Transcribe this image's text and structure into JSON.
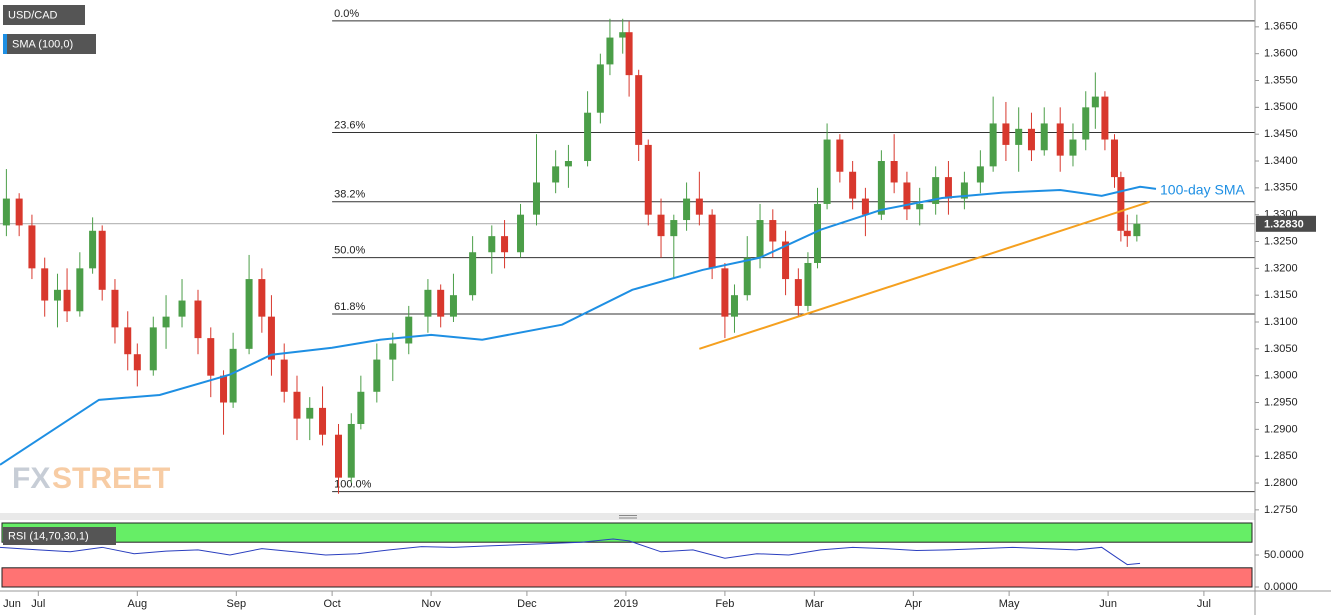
{
  "chart_data": {
    "type": "candlestick",
    "symbol": "USD/CAD",
    "indicator": "SMA (100,0)",
    "watermark": {
      "first": "FX",
      "second": "STREET"
    },
    "xlim": [
      -12,
      381
    ],
    "xticks": [
      {
        "value": -30,
        "label": "Jun"
      },
      {
        "value": 0,
        "label": "Jul"
      },
      {
        "value": 31,
        "label": "Aug"
      },
      {
        "value": 62,
        "label": "Sep"
      },
      {
        "value": 92,
        "label": "Oct"
      },
      {
        "value": 123,
        "label": "Nov"
      },
      {
        "value": 153,
        "label": "Dec"
      },
      {
        "value": 184,
        "label": "2019"
      },
      {
        "value": 215,
        "label": "Feb"
      },
      {
        "value": 243,
        "label": "Mar"
      },
      {
        "value": 274,
        "label": "Apr"
      },
      {
        "value": 304,
        "label": "May"
      },
      {
        "value": 335,
        "label": "Jun"
      },
      {
        "value": 365,
        "label": "Jul"
      }
    ],
    "ylim": [
      1.2746,
      1.37
    ],
    "yticks": [
      {
        "value": 1.275,
        "label": "1.2750"
      },
      {
        "value": 1.28,
        "label": "1.2800"
      },
      {
        "value": 1.285,
        "label": "1.2850"
      },
      {
        "value": 1.29,
        "label": "1.2900"
      },
      {
        "value": 1.295,
        "label": "1.2950"
      },
      {
        "value": 1.3,
        "label": "1.3000"
      },
      {
        "value": 1.305,
        "label": "1.3050"
      },
      {
        "value": 1.31,
        "label": "1.3100"
      },
      {
        "value": 1.315,
        "label": "1.3150"
      },
      {
        "value": 1.32,
        "label": "1.3200"
      },
      {
        "value": 1.325,
        "label": "1.3250"
      },
      {
        "value": 1.33,
        "label": "1.3300"
      },
      {
        "value": 1.335,
        "label": "1.3350"
      },
      {
        "value": 1.34,
        "label": "1.3400"
      },
      {
        "value": 1.345,
        "label": "1.3450"
      },
      {
        "value": 1.35,
        "label": "1.3500"
      },
      {
        "value": 1.355,
        "label": "1.3550"
      },
      {
        "value": 1.36,
        "label": "1.3600"
      },
      {
        "value": 1.365,
        "label": "1.3650"
      }
    ],
    "up_color": "#4b9e48",
    "down_color": "#d8382d",
    "candles": {
      "x": [
        -10,
        -6,
        -2,
        2,
        6,
        9,
        13,
        17,
        20,
        24,
        28,
        31,
        36,
        40,
        45,
        50,
        54,
        58,
        61,
        66,
        70,
        73,
        77,
        81,
        85,
        89,
        94,
        98,
        101,
        106,
        111,
        116,
        122,
        126,
        130,
        136,
        142,
        146,
        151,
        156,
        162,
        166,
        172,
        176,
        179,
        183,
        185,
        188,
        191,
        195,
        199,
        203,
        207,
        211,
        215,
        218,
        222,
        226,
        230,
        234,
        238,
        241,
        244,
        247,
        251,
        255,
        259,
        264,
        268,
        272,
        276,
        281,
        285,
        290,
        295,
        299,
        303,
        307,
        311,
        315,
        320,
        324,
        328,
        331,
        334,
        337,
        339,
        341,
        344
      ],
      "open": [
        1.328,
        1.333,
        1.328,
        1.32,
        1.314,
        1.316,
        1.312,
        1.32,
        1.327,
        1.316,
        1.309,
        1.304,
        1.301,
        1.309,
        1.311,
        1.314,
        1.307,
        1.3,
        1.295,
        1.305,
        1.318,
        1.311,
        1.303,
        1.297,
        1.292,
        1.294,
        1.289,
        1.281,
        1.291,
        1.297,
        1.303,
        1.306,
        1.311,
        1.316,
        1.311,
        1.315,
        1.323,
        1.326,
        1.323,
        1.33,
        1.336,
        1.339,
        1.34,
        1.349,
        1.358,
        1.363,
        1.364,
        1.356,
        1.343,
        1.33,
        1.326,
        1.329,
        1.333,
        1.33,
        1.32,
        1.311,
        1.315,
        1.322,
        1.329,
        1.325,
        1.318,
        1.313,
        1.321,
        1.332,
        1.344,
        1.338,
        1.333,
        1.33,
        1.34,
        1.336,
        1.331,
        1.332,
        1.337,
        1.333,
        1.336,
        1.339,
        1.347,
        1.343,
        1.346,
        1.342,
        1.347,
        1.341,
        1.344,
        1.35,
        1.352,
        1.344,
        1.337,
        1.327,
        1.326
      ],
      "high": [
        1.3385,
        1.334,
        1.33,
        1.322,
        1.319,
        1.32,
        1.323,
        1.3295,
        1.328,
        1.318,
        1.312,
        1.306,
        1.311,
        1.315,
        1.318,
        1.316,
        1.309,
        1.301,
        1.308,
        1.3225,
        1.32,
        1.315,
        1.306,
        1.3,
        1.296,
        1.298,
        1.291,
        1.293,
        1.3,
        1.306,
        1.308,
        1.313,
        1.318,
        1.317,
        1.319,
        1.326,
        1.328,
        1.329,
        1.332,
        1.345,
        1.342,
        1.343,
        1.353,
        1.36,
        1.3665,
        1.3665,
        1.366,
        1.357,
        1.344,
        1.333,
        1.33,
        1.336,
        1.338,
        1.331,
        1.321,
        1.317,
        1.326,
        1.332,
        1.331,
        1.327,
        1.32,
        1.323,
        1.335,
        1.347,
        1.345,
        1.34,
        1.335,
        1.342,
        1.345,
        1.338,
        1.335,
        1.339,
        1.34,
        1.338,
        1.342,
        1.352,
        1.351,
        1.35,
        1.349,
        1.35,
        1.35,
        1.347,
        1.353,
        1.3565,
        1.353,
        1.345,
        1.338,
        1.33,
        1.33
      ],
      "low": [
        1.326,
        1.326,
        1.318,
        1.311,
        1.309,
        1.31,
        1.311,
        1.319,
        1.314,
        1.306,
        1.301,
        1.298,
        1.3,
        1.305,
        1.309,
        1.304,
        1.296,
        1.289,
        1.294,
        1.304,
        1.308,
        1.3,
        1.295,
        1.288,
        1.288,
        1.287,
        1.278,
        1.28,
        1.29,
        1.295,
        1.299,
        1.304,
        1.308,
        1.309,
        1.31,
        1.314,
        1.319,
        1.32,
        1.322,
        1.328,
        1.334,
        1.335,
        1.339,
        1.347,
        1.356,
        1.36,
        1.352,
        1.34,
        1.328,
        1.322,
        1.318,
        1.327,
        1.328,
        1.318,
        1.307,
        1.308,
        1.314,
        1.32,
        1.322,
        1.315,
        1.311,
        1.312,
        1.32,
        1.331,
        1.336,
        1.331,
        1.326,
        1.329,
        1.334,
        1.329,
        1.328,
        1.33,
        1.33,
        1.331,
        1.334,
        1.338,
        1.34,
        1.338,
        1.34,
        1.341,
        1.338,
        1.339,
        1.342,
        1.346,
        1.342,
        1.335,
        1.325,
        1.324,
        1.325
      ],
      "close": [
        1.333,
        1.328,
        1.32,
        1.314,
        1.316,
        1.312,
        1.32,
        1.327,
        1.316,
        1.309,
        1.304,
        1.301,
        1.309,
        1.311,
        1.314,
        1.307,
        1.3,
        1.295,
        1.305,
        1.318,
        1.311,
        1.303,
        1.297,
        1.292,
        1.294,
        1.289,
        1.281,
        1.291,
        1.297,
        1.303,
        1.306,
        1.311,
        1.316,
        1.311,
        1.315,
        1.323,
        1.326,
        1.323,
        1.33,
        1.336,
        1.339,
        1.34,
        1.349,
        1.358,
        1.363,
        1.364,
        1.356,
        1.343,
        1.33,
        1.326,
        1.329,
        1.333,
        1.33,
        1.32,
        1.311,
        1.315,
        1.322,
        1.329,
        1.325,
        1.318,
        1.313,
        1.321,
        1.332,
        1.344,
        1.338,
        1.333,
        1.33,
        1.34,
        1.336,
        1.331,
        1.332,
        1.337,
        1.333,
        1.336,
        1.339,
        1.347,
        1.343,
        1.346,
        1.342,
        1.347,
        1.341,
        1.344,
        1.35,
        1.352,
        1.344,
        1.337,
        1.327,
        1.326,
        1.3283
      ]
    },
    "sma": {
      "name": "100-day SMA",
      "color": "#1e8fe3",
      "x": [
        -12,
        19,
        38,
        60,
        73,
        92,
        107,
        123,
        139,
        164,
        186,
        208,
        226,
        245,
        264,
        283,
        302,
        320,
        333,
        345,
        350
      ],
      "values": [
        1.2834,
        1.2955,
        1.2964,
        1.3002,
        1.3039,
        1.3052,
        1.3067,
        1.3076,
        1.3067,
        1.3095,
        1.316,
        1.3197,
        1.322,
        1.3272,
        1.3309,
        1.3331,
        1.3341,
        1.3346,
        1.3335,
        1.3352,
        1.3348
      ]
    },
    "trendline": {
      "color": "#f5a01f",
      "x": [
        207,
        348
      ],
      "values": [
        1.305,
        1.3324
      ]
    },
    "fibonacci": {
      "color": "#333333",
      "x_start": 92,
      "names": [
        "0.0%",
        "23.6%",
        "38.2%",
        "50.0%",
        "61.8%",
        "100.0%"
      ],
      "values": [
        1.3661,
        1.3453,
        1.3324,
        1.322,
        1.3115,
        1.2784
      ]
    },
    "last_price": {
      "value": 1.3283,
      "label": "1.32830"
    },
    "rsi": {
      "title": "RSI (14,70,30,1)",
      "color": "#2b3fbf",
      "overbought": 70,
      "oversold": 30,
      "ylim": [
        0,
        100
      ],
      "yticks": [
        {
          "value": 50,
          "label": "50.0000"
        },
        {
          "value": 0,
          "label": "0.0000"
        }
      ],
      "x": [
        -12,
        0,
        10,
        20,
        30,
        40,
        50,
        60,
        70,
        80,
        90,
        100,
        110,
        120,
        130,
        140,
        150,
        160,
        170,
        180,
        185,
        195,
        205,
        215,
        225,
        235,
        245,
        255,
        265,
        275,
        285,
        295,
        305,
        315,
        325,
        333,
        338,
        341,
        345
      ],
      "values": [
        62,
        58,
        55,
        62,
        52,
        56,
        58,
        50,
        60,
        55,
        50,
        52,
        58,
        63,
        62,
        64,
        66,
        68,
        70,
        75,
        72,
        55,
        58,
        45,
        52,
        50,
        58,
        62,
        60,
        57,
        58,
        60,
        62,
        60,
        58,
        62,
        45,
        35,
        37
      ]
    }
  }
}
